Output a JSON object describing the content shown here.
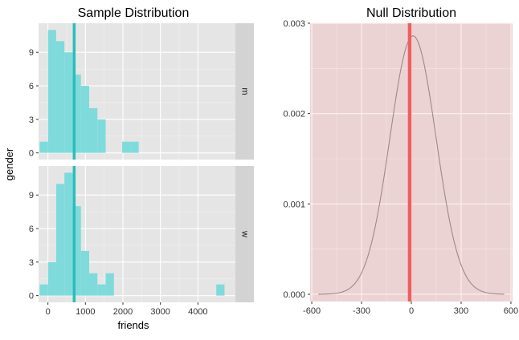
{
  "chart_data": [
    {
      "type": "bar",
      "title": "Sample Distribution",
      "xlabel": "friends",
      "ylabel": "gender",
      "xlim": [
        -250,
        5000
      ],
      "ylim": [
        -0.6,
        11.6
      ],
      "x_ticks": [
        0,
        1000,
        2000,
        3000,
        4000
      ],
      "y_ticks": [
        0,
        3,
        6,
        9
      ],
      "bin_width": 220,
      "bar_color": "#7fdbdb",
      "marker_line_color": "#2bbdbd",
      "panel_bg": "#e5e5e5",
      "strip_bg": "#d3d3d3",
      "grid": true,
      "facets": [
        {
          "label": "m",
          "marker_x": 700,
          "bins": [
            {
              "x": -110,
              "count": 1
            },
            {
              "x": 110,
              "count": 11
            },
            {
              "x": 330,
              "count": 10
            },
            {
              "x": 550,
              "count": 9
            },
            {
              "x": 770,
              "count": 7
            },
            {
              "x": 990,
              "count": 6
            },
            {
              "x": 1210,
              "count": 4
            },
            {
              "x": 1430,
              "count": 3
            },
            {
              "x": 2090,
              "count": 1
            },
            {
              "x": 2310,
              "count": 1
            }
          ]
        },
        {
          "label": "w",
          "marker_x": 700,
          "bins": [
            {
              "x": -110,
              "count": 1
            },
            {
              "x": 110,
              "count": 3
            },
            {
              "x": 330,
              "count": 10
            },
            {
              "x": 550,
              "count": 11
            },
            {
              "x": 770,
              "count": 8
            },
            {
              "x": 990,
              "count": 4
            },
            {
              "x": 1210,
              "count": 2
            },
            {
              "x": 1430,
              "count": 1
            },
            {
              "x": 1650,
              "count": 2
            },
            {
              "x": 4600,
              "count": 1
            }
          ]
        }
      ]
    },
    {
      "type": "line",
      "title": "Null Distribution",
      "xlim": [
        -610,
        610
      ],
      "ylim": [
        -8e-05,
        0.003
      ],
      "x_ticks": [
        -600,
        -300,
        0,
        300,
        600
      ],
      "x_tick_labels": [
        "-600",
        "-300",
        "0",
        "300",
        "600"
      ],
      "y_ticks": [
        0,
        0.001,
        0.002,
        0.003
      ],
      "y_tick_labels": [
        "0.000",
        "0.001",
        "0.002",
        "0.003"
      ],
      "density": {
        "mean": 10,
        "sd": 139,
        "peak": 0.00286,
        "x_start": -560,
        "x_end": 560
      },
      "line_color": "#a08888",
      "panel_bg": "#ecd3d3",
      "observed_x": -10,
      "observed_line_color": "#ef5f5f",
      "grid": true
    }
  ]
}
